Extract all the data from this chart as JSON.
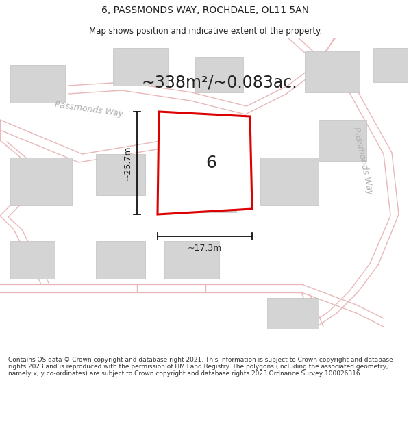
{
  "title_line1": "6, PASSMONDS WAY, ROCHDALE, OL11 5AN",
  "title_line2": "Map shows position and indicative extent of the property.",
  "area_text": "~338m²/~0.083ac.",
  "label_number": "6",
  "dim_width": "~17.3m",
  "dim_height": "~25.7m",
  "road_label_top": "Passmonds Way",
  "road_label_right": "Passmonds Way",
  "footer_text": "Contains OS data © Crown copyright and database right 2021. This information is subject to Crown copyright and database rights 2023 and is reproduced with the permission of HM Land Registry. The polygons (including the associated geometry, namely x, y co-ordinates) are subject to Crown copyright and database rights 2023 Ordnance Survey 100026316.",
  "bg_color": "#f2f0f0",
  "plot_fill": "#ffffff",
  "plot_edge": "#dd0000",
  "building_face": "#d4d4d4",
  "building_edge": "#c0c0c0",
  "road_color": "#e8b8b8",
  "road_lw": 1.0,
  "dim_color": "#111111",
  "road_label_color": "#b0b0b0",
  "text_dark": "#222222",
  "footer_color": "#333333",
  "title_fontsize": 10,
  "subtitle_fontsize": 8.5,
  "area_fontsize": 17,
  "num_fontsize": 18,
  "dim_fontsize": 9,
  "road_label_fontsize": 9,
  "footer_fontsize": 6.5
}
